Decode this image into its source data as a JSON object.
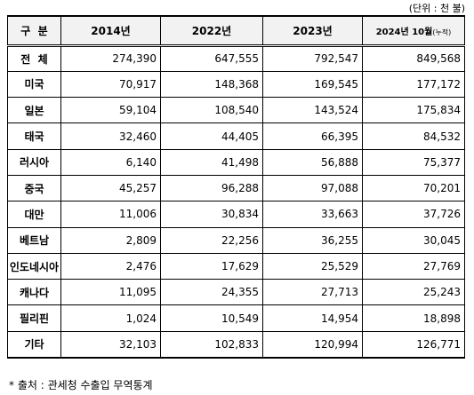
{
  "unit_note": "(단위 : 천 불)",
  "table": {
    "header": [
      "구  분",
      "2014년",
      "2022년",
      "2023년",
      {
        "main": "2024년 10월",
        "note": "(누적)"
      }
    ],
    "rows": [
      [
        "전  체",
        "274,390",
        "647,555",
        "792,547",
        "849,568"
      ],
      [
        "미국",
        "70,917",
        "148,368",
        "169,545",
        "177,172"
      ],
      [
        "일본",
        "59,104",
        "108,540",
        "143,524",
        "175,834"
      ],
      [
        "태국",
        "32,460",
        "44,405",
        "66,395",
        "84,532"
      ],
      [
        "러시아",
        "6,140",
        "41,498",
        "56,888",
        "75,377"
      ],
      [
        "중국",
        "45,257",
        "96,288",
        "97,088",
        "70,201"
      ],
      [
        "대만",
        "11,006",
        "30,834",
        "33,663",
        "37,726"
      ],
      [
        "베트남",
        "2,809",
        "22,256",
        "36,255",
        "30,045"
      ],
      [
        "인도네시아",
        "2,476",
        "17,629",
        "25,529",
        "27,769"
      ],
      [
        "캐나다",
        "11,095",
        "24,355",
        "27,713",
        "25,243"
      ],
      [
        "필리핀",
        "1,024",
        "10,549",
        "14,954",
        "18,898"
      ],
      [
        "기타",
        "32,103",
        "102,833",
        "120,994",
        "126,771"
      ]
    ]
  },
  "footnote": "* 출처 : 관세청 수출입 무역통계"
}
